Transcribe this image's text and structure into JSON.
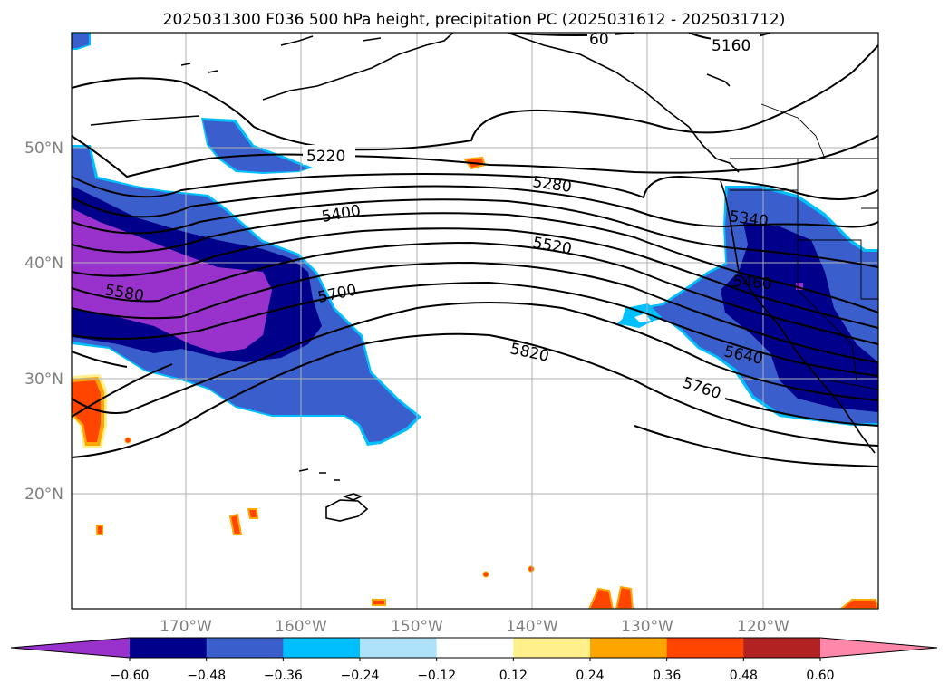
{
  "title": "2025031300 F036 500 hPa height, precipitation PC (2025031612 - 2025031712)",
  "map": {
    "lat_labels": [
      "50°N",
      "40°N",
      "30°N",
      "20°N"
    ],
    "lon_labels": [
      "170°W",
      "160°W",
      "150°W",
      "140°W",
      "130°W",
      "120°W"
    ],
    "extent": {
      "lon_min": -180,
      "lon_max": -110,
      "lat_min": 10,
      "lat_max": 60
    },
    "gridlines": true
  },
  "contours": {
    "field": "500 hPa height",
    "levels_labeled": [
      "5160",
      "5220",
      "5280",
      "5340",
      "5400",
      "5460",
      "5520",
      "5580",
      "5640",
      "5700",
      "5760",
      "5820",
      "60"
    ]
  },
  "colorbar": {
    "extend": "both",
    "ticks": [
      "−0.60",
      "−0.48",
      "−0.36",
      "−0.24",
      "−0.12",
      "0.12",
      "0.24",
      "0.36",
      "0.48",
      "0.60"
    ],
    "colors": [
      "#9932cc",
      "#00008b",
      "#3a5fcd",
      "#00bfff",
      "#aee2fa",
      "#ffffff",
      "#fff08c",
      "#ffa500",
      "#ff4500",
      "#b22222",
      "#ff88aa"
    ]
  },
  "chart_data": {
    "type": "heatmap",
    "title": "2025031300 F036 500 hPa height, precipitation PC (2025031612 - 2025031712)",
    "x_ticks": [
      "170°W",
      "160°W",
      "150°W",
      "140°W",
      "130°W",
      "120°W"
    ],
    "y_ticks": [
      "50°N",
      "40°N",
      "30°N",
      "20°N"
    ],
    "colorbar_ticks": [
      -0.6,
      -0.48,
      -0.36,
      -0.24,
      -0.12,
      0.12,
      0.24,
      0.36,
      0.48,
      0.6
    ],
    "contour_labels": [
      5160,
      5220,
      5280,
      5340,
      5400,
      5460,
      5520,
      5580,
      5640,
      5700,
      5760,
      5820
    ],
    "grid": true
  }
}
